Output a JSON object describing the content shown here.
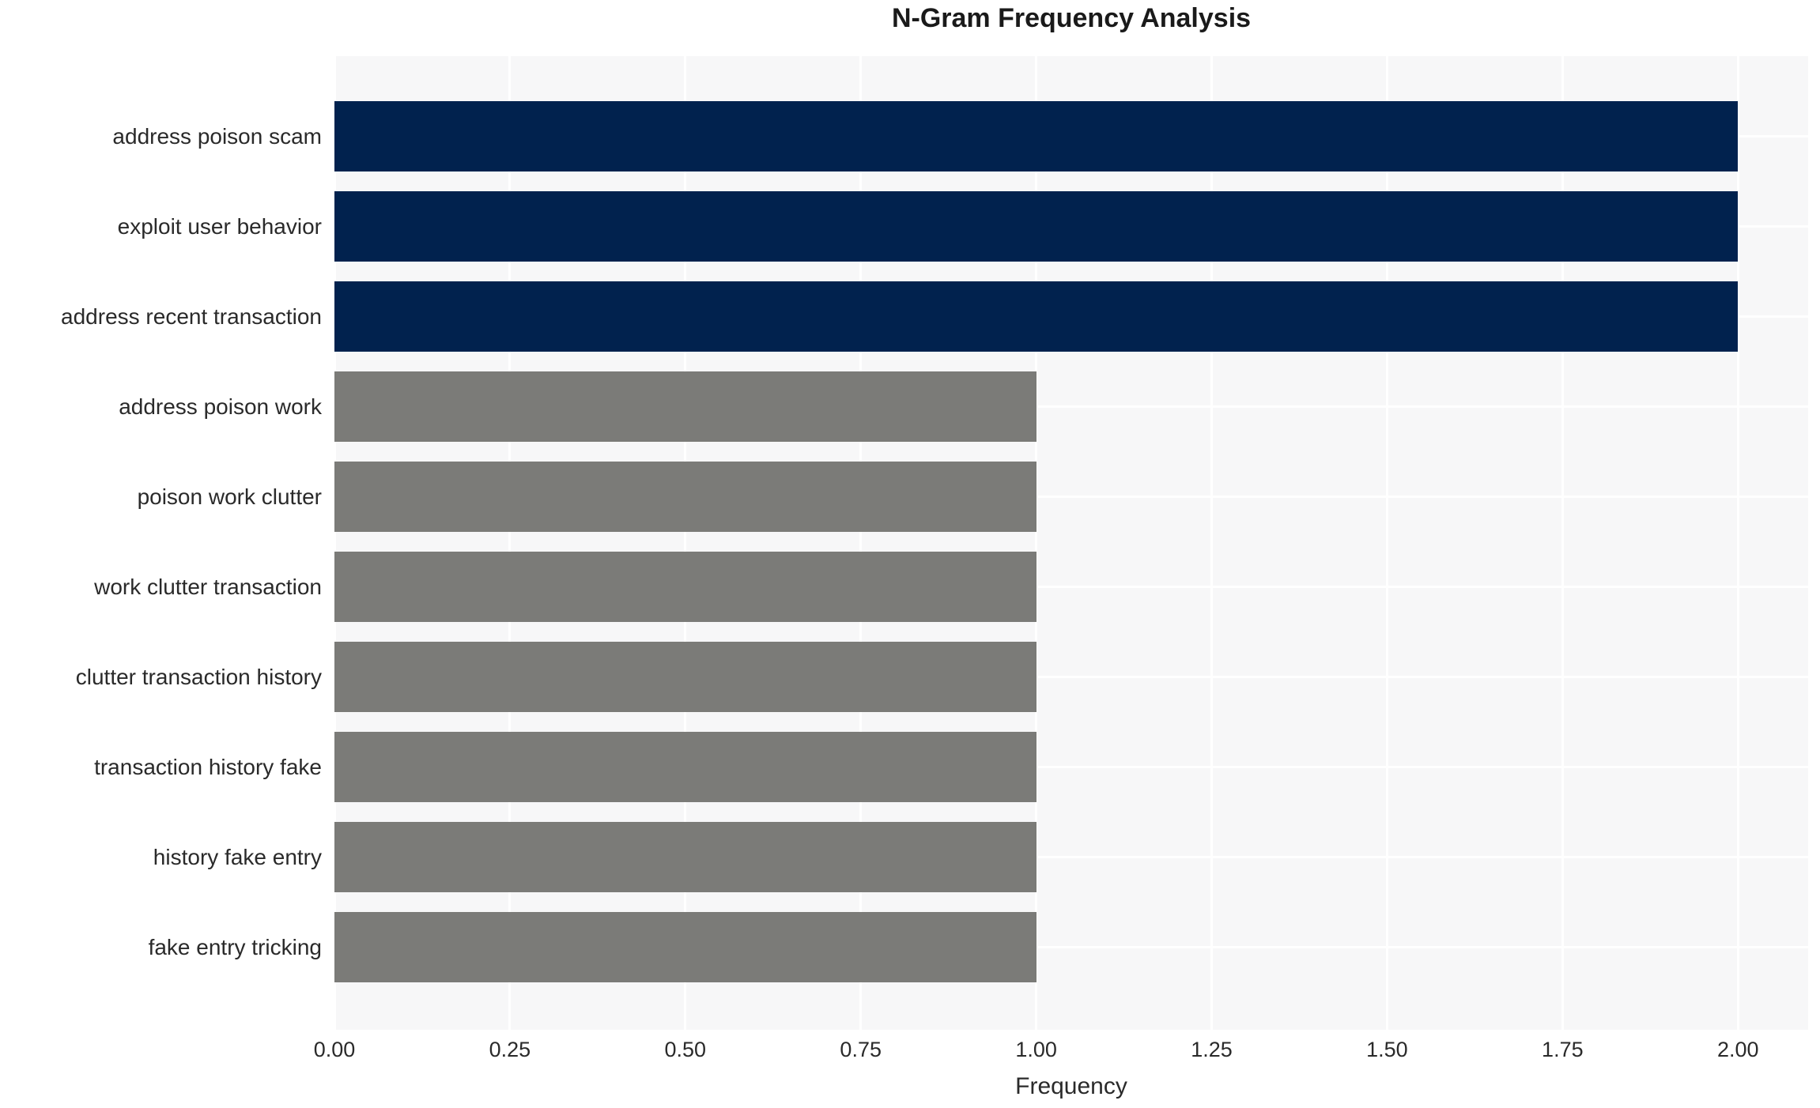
{
  "chart_data": {
    "type": "bar",
    "orientation": "horizontal",
    "title": "N-Gram Frequency Analysis",
    "xlabel": "Frequency",
    "ylabel": "",
    "categories": [
      "address poison scam",
      "exploit user behavior",
      "address recent transaction",
      "address poison work",
      "poison work clutter",
      "work clutter transaction",
      "clutter transaction history",
      "transaction history fake",
      "history fake entry",
      "fake entry tricking"
    ],
    "values": [
      2,
      2,
      2,
      1,
      1,
      1,
      1,
      1,
      1,
      1
    ],
    "bar_colors": [
      "#01224e",
      "#01224e",
      "#01224e",
      "#7b7b78",
      "#7b7b78",
      "#7b7b78",
      "#7b7b78",
      "#7b7b78",
      "#7b7b78",
      "#7b7b78"
    ],
    "xlim": [
      0,
      2.1
    ],
    "xticks": [
      "0.00",
      "0.25",
      "0.50",
      "0.75",
      "1.00",
      "1.25",
      "1.50",
      "1.75",
      "2.00"
    ],
    "grid": true,
    "legend": false,
    "plot_background": "#f7f7f8",
    "grid_color": "#ffffff",
    "text_color": "#2a2a2a",
    "title_color": "#1a1a1a"
  }
}
